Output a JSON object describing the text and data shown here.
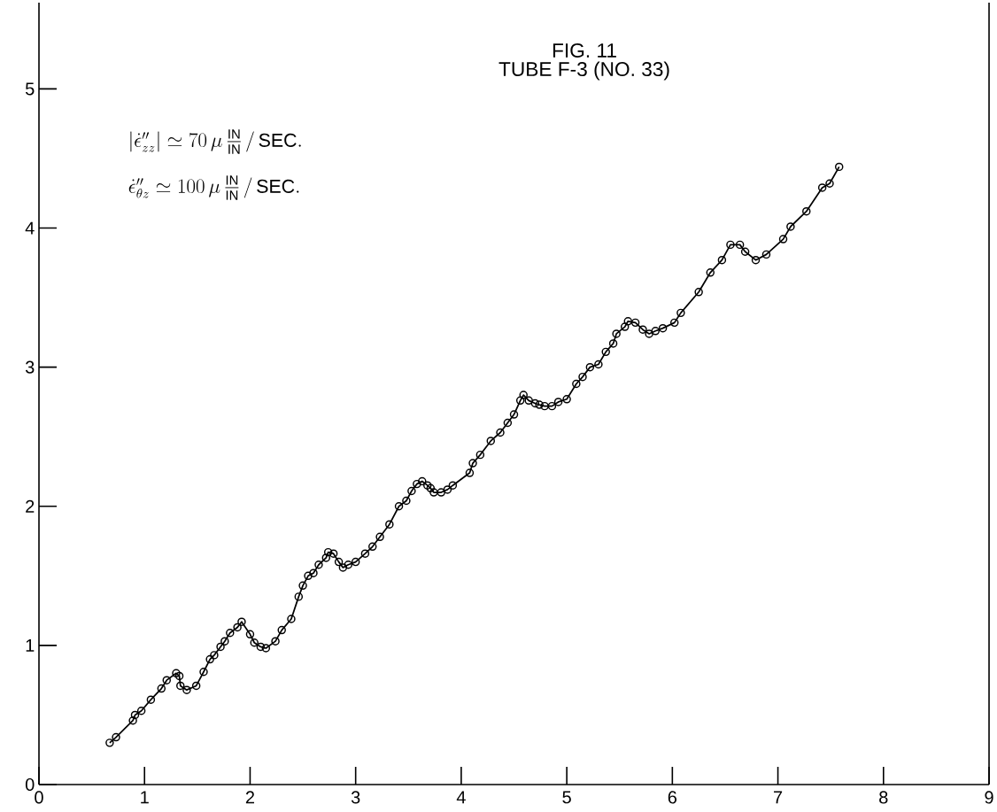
{
  "chart_data": {
    "type": "line",
    "title": "FIG. 11",
    "subtitle": "TUBE F-3 (NO. 33)",
    "annotations": [
      "\\left|\\dot{\\epsilon}''_{zz}\\right| \\simeq 70\\,\\mu\\,\\frac{\\mathrm{IN}}{\\mathrm{IN}}\\,/\\,\\mathrm{SEC.}",
      "\\dot{\\epsilon}''_{\\theta z} \\simeq 100\\,\\mu\\,\\frac{\\mathrm{IN}}{\\mathrm{IN}}\\,/\\,\\mathrm{SEC.}"
    ],
    "xlim": [
      0,
      9
    ],
    "ylim": [
      0,
      5.62
    ],
    "xticks": [
      0,
      1,
      2,
      3,
      4,
      5,
      6,
      7,
      8,
      9
    ],
    "yticks": [
      0,
      1,
      2,
      3,
      4,
      5
    ],
    "marker": "circle",
    "line_style": "solid",
    "series": [
      {
        "color": "#000000",
        "x": [
          0.67,
          0.73,
          0.89,
          0.91,
          0.97,
          1.06,
          1.16,
          1.21,
          1.3,
          1.33,
          1.34,
          1.4,
          1.49,
          1.56,
          1.62,
          1.66,
          1.72,
          1.76,
          1.81,
          1.88,
          1.92,
          2.0,
          2.04,
          2.1,
          2.15,
          2.24,
          2.3,
          2.39,
          2.46,
          2.5,
          2.55,
          2.6,
          2.65,
          2.72,
          2.74,
          2.79,
          2.84,
          2.88,
          2.93,
          3.0,
          3.09,
          3.16,
          3.23,
          3.32,
          3.41,
          3.48,
          3.53,
          3.58,
          3.63,
          3.68,
          3.71,
          3.74,
          3.81,
          3.87,
          3.92,
          4.08,
          4.11,
          4.18,
          4.28,
          4.37,
          4.44,
          4.5,
          4.56,
          4.59,
          4.64,
          4.7,
          4.74,
          4.79,
          4.86,
          4.92,
          5.0,
          5.09,
          5.15,
          5.22,
          5.3,
          5.37,
          5.44,
          5.47,
          5.55,
          5.58,
          5.65,
          5.72,
          5.78,
          5.84,
          5.91,
          6.02,
          6.08,
          6.25,
          6.36,
          6.47,
          6.55,
          6.64,
          6.69,
          6.79,
          6.89,
          7.05,
          7.12,
          7.27,
          7.42,
          7.49,
          7.58
        ],
        "values": [
          0.3,
          0.34,
          0.46,
          0.5,
          0.53,
          0.61,
          0.69,
          0.75,
          0.8,
          0.78,
          0.71,
          0.68,
          0.71,
          0.81,
          0.9,
          0.93,
          0.99,
          1.03,
          1.09,
          1.13,
          1.17,
          1.08,
          1.02,
          0.99,
          0.98,
          1.03,
          1.11,
          1.19,
          1.35,
          1.43,
          1.5,
          1.52,
          1.58,
          1.63,
          1.67,
          1.66,
          1.6,
          1.56,
          1.58,
          1.6,
          1.66,
          1.71,
          1.78,
          1.87,
          2.0,
          2.04,
          2.11,
          2.16,
          2.18,
          2.15,
          2.13,
          2.1,
          2.1,
          2.12,
          2.15,
          2.24,
          2.31,
          2.37,
          2.47,
          2.53,
          2.6,
          2.66,
          2.76,
          2.8,
          2.76,
          2.74,
          2.73,
          2.72,
          2.72,
          2.75,
          2.77,
          2.88,
          2.93,
          3.0,
          3.02,
          3.11,
          3.17,
          3.24,
          3.29,
          3.33,
          3.32,
          3.27,
          3.24,
          3.26,
          3.28,
          3.32,
          3.39,
          3.54,
          3.68,
          3.77,
          3.88,
          3.88,
          3.83,
          3.77,
          3.81,
          3.92,
          4.01,
          4.12,
          4.29,
          4.32,
          4.44
        ]
      }
    ]
  }
}
